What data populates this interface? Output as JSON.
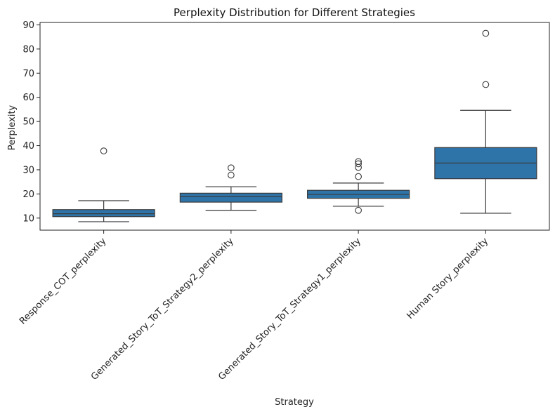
{
  "chart_data": {
    "type": "box",
    "title": "Perplexity Distribution for Different Strategies",
    "xlabel": "Strategy",
    "ylabel": "Perplexity",
    "ylim": [
      5,
      91
    ],
    "yticks": [
      10,
      20,
      30,
      40,
      50,
      60,
      70,
      80,
      90
    ],
    "grid": false,
    "box_color": "#2f74a8",
    "line_color": "#3a3a3a",
    "categories": [
      "Response_COT_perplexity",
      "Generated_Story_ToT_Strategy2_perplexity",
      "Generated_Story_ToT_Strategy1_perplexity",
      "Human Story_perplexity"
    ],
    "boxes": [
      {
        "whisker_low": 8.5,
        "q1": 10.6,
        "median": 11.8,
        "q3": 13.5,
        "whisker_high": 17.2,
        "outliers": [
          37.8
        ]
      },
      {
        "whisker_low": 13.2,
        "q1": 16.6,
        "median": 18.9,
        "q3": 20.3,
        "whisker_high": 23.0,
        "outliers": [
          27.8,
          30.8
        ]
      },
      {
        "whisker_low": 14.9,
        "q1": 18.2,
        "median": 19.8,
        "q3": 21.5,
        "whisker_high": 24.5,
        "outliers": [
          13.2,
          27.2,
          31.0,
          32.5,
          33.4
        ]
      },
      {
        "whisker_low": 12.0,
        "q1": 26.3,
        "median": 32.8,
        "q3": 39.2,
        "whisker_high": 54.6,
        "outliers": [
          65.3,
          86.5
        ]
      }
    ]
  }
}
